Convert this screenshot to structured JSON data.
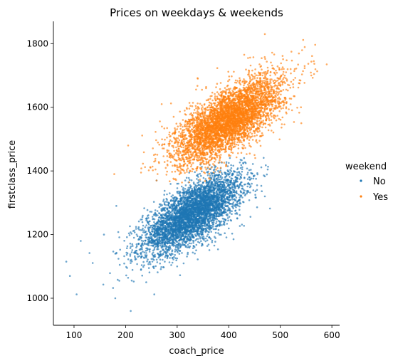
{
  "chart_data": {
    "type": "scatter",
    "title": "Prices on weekdays & weekends",
    "xlabel": "coach_price",
    "ylabel": "firstclass_price",
    "xlim": [
      60,
      615
    ],
    "ylim": [
      915,
      1870
    ],
    "xticks": [
      100,
      200,
      300,
      400,
      500,
      600
    ],
    "yticks": [
      1000,
      1200,
      1400,
      1600,
      1800
    ],
    "grid": false,
    "legend_title": "weekend",
    "legend_position": "right",
    "series": [
      {
        "name": "No",
        "color": "#1f77b4",
        "approx_points": 4500,
        "center": [
          330,
          1265
        ],
        "sd": [
          48,
          62
        ],
        "correlation": 0.7,
        "coach_range": [
          85,
          480
        ],
        "firstclass_range": [
          960,
          1445
        ],
        "sample_points": [
          [
            85,
            1115
          ],
          [
            92,
            1070
          ],
          [
            105,
            1012
          ],
          [
            113,
            1180
          ],
          [
            130,
            1142
          ],
          [
            158,
            1200
          ],
          [
            180,
            1000
          ],
          [
            182,
            1290
          ],
          [
            210,
            960
          ],
          [
            240,
            1050
          ],
          [
            260,
            1370
          ],
          [
            300,
            1100
          ],
          [
            330,
            1265
          ],
          [
            345,
            1420
          ],
          [
            375,
            1360
          ],
          [
            382,
            1200
          ],
          [
            420,
            1395
          ],
          [
            470,
            1320
          ],
          [
            480,
            1282
          ]
        ]
      },
      {
        "name": "Yes",
        "color": "#ff7f0e",
        "approx_points": 4500,
        "center": [
          400,
          1560
        ],
        "sd": [
          52,
          68
        ],
        "correlation": 0.7,
        "coach_range": [
          175,
          590
        ],
        "firstclass_range": [
          1360,
          1830
        ],
        "sample_points": [
          [
            178,
            1390
          ],
          [
            205,
            1480
          ],
          [
            230,
            1395
          ],
          [
            260,
            1370
          ],
          [
            270,
            1610
          ],
          [
            300,
            1460
          ],
          [
            340,
            1690
          ],
          [
            400,
            1560
          ],
          [
            430,
            1765
          ],
          [
            450,
            1450
          ],
          [
            470,
            1830
          ],
          [
            520,
            1720
          ],
          [
            540,
            1600
          ],
          [
            560,
            1700
          ],
          [
            590,
            1735
          ]
        ]
      }
    ]
  }
}
